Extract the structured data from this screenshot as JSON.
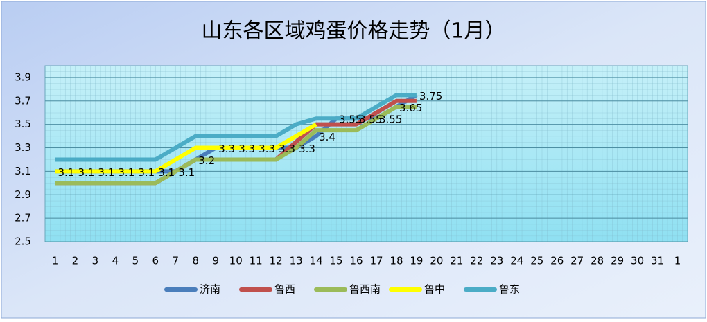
{
  "chart_data": {
    "type": "line",
    "title": "山东各区域鸡蛋价格走势（1月）",
    "categories": [
      "1",
      "2",
      "3",
      "4",
      "5",
      "6",
      "7",
      "8",
      "9",
      "10",
      "11",
      "12",
      "13",
      "14",
      "15",
      "16",
      "17",
      "18",
      "19",
      "20",
      "21",
      "22",
      "23",
      "24",
      "25",
      "26",
      "27",
      "28",
      "29",
      "30",
      "31",
      "1"
    ],
    "ylim": [
      2.5,
      4.0
    ],
    "yticks": [
      2.5,
      2.7,
      2.9,
      3.1,
      3.3,
      3.5,
      3.7,
      3.9
    ],
    "grid": true,
    "legend": "bottom",
    "series": [
      {
        "name": "济南",
        "color": "#4a7ebb",
        "values": [
          3.1,
          3.1,
          3.1,
          3.1,
          3.1,
          3.1,
          3.1,
          3.2,
          3.3,
          3.3,
          3.3,
          3.3,
          3.3,
          3.4,
          3.55,
          3.55,
          3.55,
          3.65,
          3.75,
          null,
          null,
          null,
          null,
          null,
          null,
          null,
          null,
          null,
          null,
          null,
          null,
          null
        ],
        "show_labels": true
      },
      {
        "name": "鲁西",
        "color": "#c0504d",
        "values": [
          3.0,
          3.0,
          3.0,
          3.0,
          3.0,
          3.0,
          3.1,
          3.2,
          3.2,
          3.2,
          3.2,
          3.2,
          3.35,
          3.5,
          3.5,
          3.5,
          3.6,
          3.7,
          3.7,
          null,
          null,
          null,
          null,
          null,
          null,
          null,
          null,
          null,
          null,
          null,
          null,
          null
        ]
      },
      {
        "name": "鲁西南",
        "color": "#9bbb59",
        "values": [
          3.0,
          3.0,
          3.0,
          3.0,
          3.0,
          3.0,
          3.1,
          3.2,
          3.2,
          3.2,
          3.2,
          3.2,
          3.3,
          3.45,
          3.45,
          3.45,
          3.55,
          3.65,
          3.65,
          null,
          null,
          null,
          null,
          null,
          null,
          null,
          null,
          null,
          null,
          null,
          null,
          null
        ]
      },
      {
        "name": "鲁中",
        "color": "#ffff00",
        "values": [
          3.1,
          3.1,
          3.1,
          3.1,
          3.1,
          3.1,
          3.2,
          3.3,
          3.3,
          3.3,
          3.3,
          3.3,
          3.4,
          3.5,
          null,
          null,
          null,
          null,
          null,
          null,
          null,
          null,
          null,
          null,
          null,
          null,
          null,
          null,
          null,
          null,
          null,
          null
        ]
      },
      {
        "name": "鲁东",
        "color": "#4bacc6",
        "values": [
          3.2,
          3.2,
          3.2,
          3.2,
          3.2,
          3.2,
          3.3,
          3.4,
          3.4,
          3.4,
          3.4,
          3.4,
          3.5,
          3.55,
          3.55,
          3.55,
          3.65,
          3.75,
          3.75,
          null,
          null,
          null,
          null,
          null,
          null,
          null,
          null,
          null,
          null,
          null,
          null,
          null
        ]
      }
    ]
  }
}
